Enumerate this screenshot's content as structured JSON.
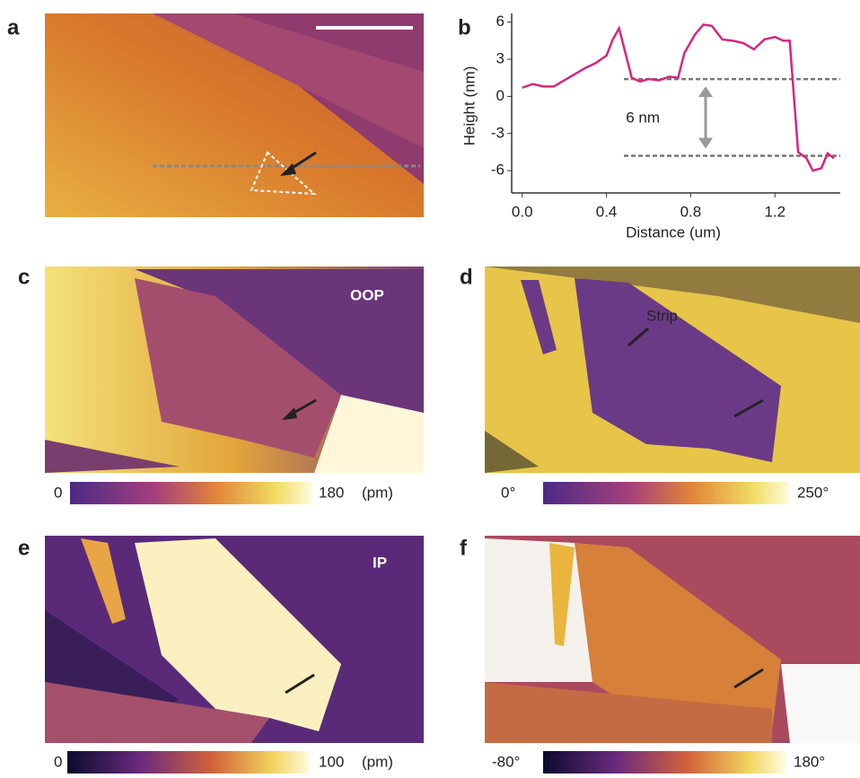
{
  "figure": {
    "panel_labels": [
      "a",
      "b",
      "c",
      "d",
      "e",
      "f"
    ],
    "c": {
      "tag": "OOP",
      "colorbar": {
        "min": "0",
        "max": "180",
        "unit": "(pm)"
      }
    },
    "d": {
      "tag": "Strip",
      "colorbar": {
        "min": "0°",
        "max": "250°"
      }
    },
    "e": {
      "tag": "IP",
      "colorbar": {
        "min": "0",
        "max": "100",
        "unit": "(pm)"
      }
    },
    "f": {
      "colorbar": {
        "min": "-80°",
        "max": "180°"
      }
    }
  },
  "chart_data": {
    "type": "line",
    "xlabel": "Distance (um)",
    "ylabel": "Height (nm)",
    "annotation": "6 nm",
    "x": [
      0,
      0.05,
      0.1,
      0.15,
      0.2,
      0.25,
      0.3,
      0.35,
      0.4,
      0.43,
      0.46,
      0.49,
      0.52,
      0.56,
      0.6,
      0.65,
      0.7,
      0.74,
      0.77,
      0.82,
      0.86,
      0.9,
      0.95,
      1.0,
      1.05,
      1.1,
      1.15,
      1.2,
      1.24,
      1.27,
      1.29,
      1.31,
      1.35,
      1.38,
      1.42,
      1.45,
      1.48
    ],
    "values": [
      0.7,
      1.0,
      0.8,
      0.8,
      1.3,
      1.8,
      2.3,
      2.7,
      3.3,
      4.6,
      5.5,
      3.5,
      1.5,
      1.2,
      1.4,
      1.3,
      1.6,
      1.5,
      3.5,
      5.0,
      5.8,
      5.7,
      4.6,
      4.5,
      4.3,
      3.8,
      4.6,
      4.8,
      4.5,
      4.5,
      0,
      -4.5,
      -5.0,
      -6.0,
      -5.8,
      -4.6,
      -5.0
    ],
    "color": "#d6267e",
    "hlines": [
      1.4,
      -4.8
    ],
    "xlim": [
      -0.05,
      1.51
    ],
    "ylim": [
      -7.8,
      6.7
    ],
    "xticks": [
      {
        "value": 0,
        "label": "0.0"
      },
      0.4,
      0.8,
      1.2
    ],
    "yticks": [
      -6,
      -3,
      0,
      3,
      6
    ]
  }
}
